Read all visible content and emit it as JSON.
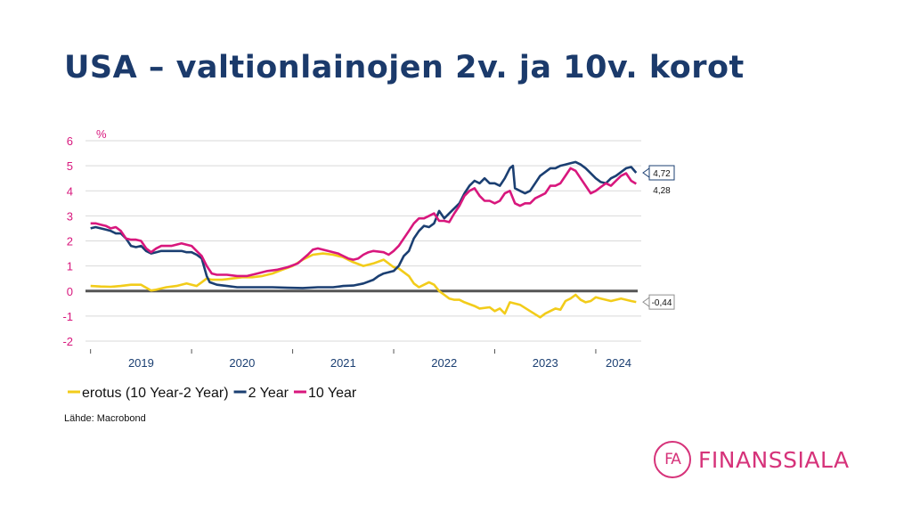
{
  "title": "USA – valtionlainojen 2v. ja 10v. korot",
  "source": "Lähde: Macrobond",
  "logo": {
    "mark": "FA",
    "word": "FINANSSIALA"
  },
  "colors": {
    "title": "#1b3a6b",
    "spread": "#f2cc1a",
    "two_year": "#1b3f72",
    "ten_year": "#d8177d",
    "axis_pink": "#d8177d",
    "year_blue": "#1b3f72"
  },
  "chart_data": {
    "type": "line",
    "ylabel": "%",
    "ylim": [
      -2,
      6
    ],
    "yticks": [
      6,
      5,
      4,
      3,
      2,
      1,
      0,
      -1,
      -2
    ],
    "xlim": [
      2018.95,
      2024.45
    ],
    "xlabels": [
      "2019",
      "2020",
      "2021",
      "2022",
      "2023",
      "2024"
    ],
    "legend_position": "bottom-left",
    "grid": true,
    "end_labels": [
      "4,72",
      "4,28",
      "-0,44"
    ],
    "series": [
      {
        "name": "erotus (10 Year-2 Year)",
        "color": "#f2cc1a",
        "points": [
          [
            2019.0,
            0.2
          ],
          [
            2019.1,
            0.18
          ],
          [
            2019.2,
            0.17
          ],
          [
            2019.3,
            0.2
          ],
          [
            2019.4,
            0.25
          ],
          [
            2019.5,
            0.25
          ],
          [
            2019.6,
            0.02
          ],
          [
            2019.65,
            0.05
          ],
          [
            2019.75,
            0.15
          ],
          [
            2019.85,
            0.2
          ],
          [
            2019.95,
            0.3
          ],
          [
            2020.05,
            0.2
          ],
          [
            2020.1,
            0.35
          ],
          [
            2020.15,
            0.5
          ],
          [
            2020.2,
            0.45
          ],
          [
            2020.3,
            0.45
          ],
          [
            2020.4,
            0.5
          ],
          [
            2020.5,
            0.55
          ],
          [
            2020.6,
            0.55
          ],
          [
            2020.7,
            0.6
          ],
          [
            2020.8,
            0.7
          ],
          [
            2020.9,
            0.85
          ],
          [
            2021.0,
            1.0
          ],
          [
            2021.1,
            1.25
          ],
          [
            2021.2,
            1.45
          ],
          [
            2021.3,
            1.5
          ],
          [
            2021.4,
            1.45
          ],
          [
            2021.5,
            1.35
          ],
          [
            2021.6,
            1.15
          ],
          [
            2021.7,
            1.0
          ],
          [
            2021.8,
            1.1
          ],
          [
            2021.9,
            1.25
          ],
          [
            2022.0,
            0.95
          ],
          [
            2022.05,
            0.9
          ],
          [
            2022.1,
            0.75
          ],
          [
            2022.15,
            0.6
          ],
          [
            2022.2,
            0.3
          ],
          [
            2022.25,
            0.15
          ],
          [
            2022.3,
            0.25
          ],
          [
            2022.35,
            0.35
          ],
          [
            2022.4,
            0.25
          ],
          [
            2022.45,
            0.0
          ],
          [
            2022.5,
            -0.15
          ],
          [
            2022.55,
            -0.3
          ],
          [
            2022.6,
            -0.35
          ],
          [
            2022.65,
            -0.35
          ],
          [
            2022.7,
            -0.45
          ],
          [
            2022.8,
            -0.6
          ],
          [
            2022.85,
            -0.7
          ],
          [
            2022.95,
            -0.65
          ],
          [
            2023.0,
            -0.8
          ],
          [
            2023.05,
            -0.7
          ],
          [
            2023.1,
            -0.9
          ],
          [
            2023.15,
            -0.45
          ],
          [
            2023.25,
            -0.55
          ],
          [
            2023.35,
            -0.8
          ],
          [
            2023.45,
            -1.05
          ],
          [
            2023.5,
            -0.9
          ],
          [
            2023.6,
            -0.7
          ],
          [
            2023.65,
            -0.75
          ],
          [
            2023.7,
            -0.4
          ],
          [
            2023.75,
            -0.3
          ],
          [
            2023.8,
            -0.15
          ],
          [
            2023.85,
            -0.35
          ],
          [
            2023.9,
            -0.45
          ],
          [
            2023.95,
            -0.4
          ],
          [
            2024.0,
            -0.25
          ],
          [
            2024.05,
            -0.3
          ],
          [
            2024.1,
            -0.35
          ],
          [
            2024.15,
            -0.4
          ],
          [
            2024.2,
            -0.35
          ],
          [
            2024.25,
            -0.3
          ],
          [
            2024.3,
            -0.35
          ],
          [
            2024.35,
            -0.4
          ],
          [
            2024.4,
            -0.44
          ]
        ]
      },
      {
        "name": "2 Year",
        "color": "#1b3f72",
        "points": [
          [
            2019.0,
            2.5
          ],
          [
            2019.05,
            2.55
          ],
          [
            2019.1,
            2.5
          ],
          [
            2019.15,
            2.45
          ],
          [
            2019.2,
            2.4
          ],
          [
            2019.25,
            2.3
          ],
          [
            2019.3,
            2.3
          ],
          [
            2019.35,
            2.1
          ],
          [
            2019.4,
            1.8
          ],
          [
            2019.45,
            1.75
          ],
          [
            2019.5,
            1.8
          ],
          [
            2019.55,
            1.6
          ],
          [
            2019.6,
            1.5
          ],
          [
            2019.65,
            1.55
          ],
          [
            2019.7,
            1.6
          ],
          [
            2019.8,
            1.6
          ],
          [
            2019.9,
            1.6
          ],
          [
            2019.95,
            1.55
          ],
          [
            2020.0,
            1.55
          ],
          [
            2020.05,
            1.45
          ],
          [
            2020.1,
            1.3
          ],
          [
            2020.15,
            0.6
          ],
          [
            2020.18,
            0.35
          ],
          [
            2020.25,
            0.25
          ],
          [
            2020.35,
            0.2
          ],
          [
            2020.45,
            0.15
          ],
          [
            2020.6,
            0.15
          ],
          [
            2020.8,
            0.15
          ],
          [
            2020.95,
            0.13
          ],
          [
            2021.1,
            0.12
          ],
          [
            2021.25,
            0.15
          ],
          [
            2021.4,
            0.15
          ],
          [
            2021.5,
            0.2
          ],
          [
            2021.6,
            0.22
          ],
          [
            2021.7,
            0.3
          ],
          [
            2021.8,
            0.45
          ],
          [
            2021.85,
            0.6
          ],
          [
            2021.9,
            0.7
          ],
          [
            2022.0,
            0.8
          ],
          [
            2022.05,
            1.0
          ],
          [
            2022.1,
            1.4
          ],
          [
            2022.15,
            1.6
          ],
          [
            2022.2,
            2.1
          ],
          [
            2022.25,
            2.4
          ],
          [
            2022.3,
            2.6
          ],
          [
            2022.35,
            2.55
          ],
          [
            2022.4,
            2.7
          ],
          [
            2022.45,
            3.2
          ],
          [
            2022.5,
            2.9
          ],
          [
            2022.55,
            3.1
          ],
          [
            2022.6,
            3.3
          ],
          [
            2022.65,
            3.5
          ],
          [
            2022.7,
            3.9
          ],
          [
            2022.75,
            4.2
          ],
          [
            2022.8,
            4.4
          ],
          [
            2022.85,
            4.3
          ],
          [
            2022.9,
            4.5
          ],
          [
            2022.95,
            4.3
          ],
          [
            2023.0,
            4.3
          ],
          [
            2023.05,
            4.2
          ],
          [
            2023.1,
            4.5
          ],
          [
            2023.15,
            4.9
          ],
          [
            2023.18,
            5.0
          ],
          [
            2023.2,
            4.1
          ],
          [
            2023.25,
            4.0
          ],
          [
            2023.3,
            3.9
          ],
          [
            2023.35,
            4.0
          ],
          [
            2023.4,
            4.3
          ],
          [
            2023.45,
            4.6
          ],
          [
            2023.5,
            4.75
          ],
          [
            2023.55,
            4.9
          ],
          [
            2023.6,
            4.9
          ],
          [
            2023.65,
            5.0
          ],
          [
            2023.7,
            5.05
          ],
          [
            2023.75,
            5.1
          ],
          [
            2023.8,
            5.15
          ],
          [
            2023.85,
            5.05
          ],
          [
            2023.9,
            4.9
          ],
          [
            2023.95,
            4.7
          ],
          [
            2024.0,
            4.5
          ],
          [
            2024.05,
            4.35
          ],
          [
            2024.1,
            4.3
          ],
          [
            2024.15,
            4.5
          ],
          [
            2024.2,
            4.6
          ],
          [
            2024.25,
            4.75
          ],
          [
            2024.3,
            4.9
          ],
          [
            2024.35,
            4.95
          ],
          [
            2024.4,
            4.72
          ]
        ]
      },
      {
        "name": "10 Year",
        "color": "#d8177d",
        "points": [
          [
            2019.0,
            2.7
          ],
          [
            2019.05,
            2.7
          ],
          [
            2019.1,
            2.65
          ],
          [
            2019.15,
            2.6
          ],
          [
            2019.2,
            2.5
          ],
          [
            2019.25,
            2.55
          ],
          [
            2019.3,
            2.4
          ],
          [
            2019.35,
            2.1
          ],
          [
            2019.4,
            2.05
          ],
          [
            2019.45,
            2.05
          ],
          [
            2019.5,
            2.0
          ],
          [
            2019.55,
            1.7
          ],
          [
            2019.6,
            1.55
          ],
          [
            2019.65,
            1.7
          ],
          [
            2019.7,
            1.8
          ],
          [
            2019.8,
            1.8
          ],
          [
            2019.9,
            1.9
          ],
          [
            2019.95,
            1.85
          ],
          [
            2020.0,
            1.8
          ],
          [
            2020.05,
            1.6
          ],
          [
            2020.1,
            1.4
          ],
          [
            2020.15,
            1.0
          ],
          [
            2020.2,
            0.7
          ],
          [
            2020.25,
            0.65
          ],
          [
            2020.35,
            0.65
          ],
          [
            2020.45,
            0.6
          ],
          [
            2020.55,
            0.6
          ],
          [
            2020.65,
            0.7
          ],
          [
            2020.75,
            0.8
          ],
          [
            2020.85,
            0.85
          ],
          [
            2020.95,
            0.95
          ],
          [
            2021.05,
            1.1
          ],
          [
            2021.15,
            1.45
          ],
          [
            2021.2,
            1.65
          ],
          [
            2021.25,
            1.7
          ],
          [
            2021.35,
            1.6
          ],
          [
            2021.45,
            1.5
          ],
          [
            2021.55,
            1.3
          ],
          [
            2021.6,
            1.25
          ],
          [
            2021.65,
            1.3
          ],
          [
            2021.7,
            1.45
          ],
          [
            2021.75,
            1.55
          ],
          [
            2021.8,
            1.6
          ],
          [
            2021.9,
            1.55
          ],
          [
            2021.95,
            1.45
          ],
          [
            2022.0,
            1.6
          ],
          [
            2022.05,
            1.8
          ],
          [
            2022.1,
            2.1
          ],
          [
            2022.15,
            2.4
          ],
          [
            2022.2,
            2.7
          ],
          [
            2022.25,
            2.9
          ],
          [
            2022.3,
            2.9
          ],
          [
            2022.35,
            3.0
          ],
          [
            2022.4,
            3.1
          ],
          [
            2022.45,
            2.8
          ],
          [
            2022.5,
            2.8
          ],
          [
            2022.55,
            2.75
          ],
          [
            2022.6,
            3.1
          ],
          [
            2022.65,
            3.4
          ],
          [
            2022.7,
            3.8
          ],
          [
            2022.75,
            4.0
          ],
          [
            2022.8,
            4.1
          ],
          [
            2022.85,
            3.8
          ],
          [
            2022.9,
            3.6
          ],
          [
            2022.95,
            3.6
          ],
          [
            2023.0,
            3.5
          ],
          [
            2023.05,
            3.6
          ],
          [
            2023.1,
            3.9
          ],
          [
            2023.15,
            4.0
          ],
          [
            2023.2,
            3.5
          ],
          [
            2023.25,
            3.4
          ],
          [
            2023.3,
            3.5
          ],
          [
            2023.35,
            3.5
          ],
          [
            2023.4,
            3.7
          ],
          [
            2023.45,
            3.8
          ],
          [
            2023.5,
            3.9
          ],
          [
            2023.55,
            4.2
          ],
          [
            2023.6,
            4.2
          ],
          [
            2023.65,
            4.3
          ],
          [
            2023.7,
            4.6
          ],
          [
            2023.75,
            4.9
          ],
          [
            2023.8,
            4.8
          ],
          [
            2023.85,
            4.5
          ],
          [
            2023.9,
            4.2
          ],
          [
            2023.95,
            3.9
          ],
          [
            2024.0,
            4.0
          ],
          [
            2024.05,
            4.15
          ],
          [
            2024.1,
            4.3
          ],
          [
            2024.15,
            4.2
          ],
          [
            2024.2,
            4.4
          ],
          [
            2024.25,
            4.6
          ],
          [
            2024.3,
            4.7
          ],
          [
            2024.35,
            4.4
          ],
          [
            2024.4,
            4.28
          ]
        ]
      }
    ]
  }
}
